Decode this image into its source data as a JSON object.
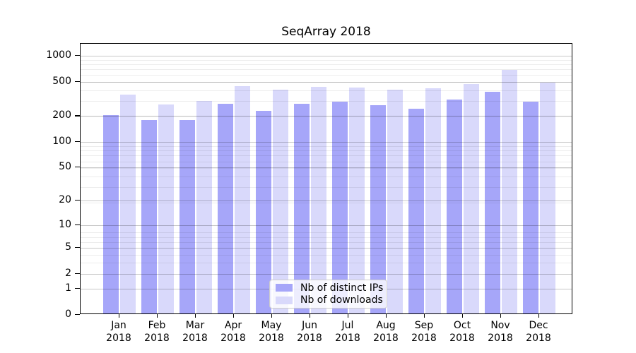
{
  "chart_data": {
    "type": "bar",
    "title": "SeqArray 2018",
    "categories": [
      "Jan",
      "Feb",
      "Mar",
      "Apr",
      "May",
      "Jun",
      "Jul",
      "Aug",
      "Sep",
      "Oct",
      "Nov",
      "Dec"
    ],
    "year_label": "2018",
    "series": [
      {
        "name": "Nb of distinct IPs",
        "color": "#a6a6f9",
        "values": [
          198,
          174,
          174,
          270,
          222,
          266,
          283,
          258,
          234,
          297,
          370,
          283
        ]
      },
      {
        "name": "Nb of downloads",
        "color": "#d9d9fb",
        "values": [
          345,
          265,
          290,
          430,
          388,
          418,
          413,
          393,
          402,
          458,
          660,
          472
        ]
      }
    ],
    "yscale": "log1p",
    "yticks": [
      0,
      1,
      2,
      5,
      10,
      20,
      50,
      100,
      200,
      500,
      1000
    ],
    "ylim": [
      0,
      1380
    ],
    "xlabel": "",
    "ylabel": "",
    "grid": true,
    "legend_position": "inside-bottom-center"
  },
  "colors": {
    "background": "#ffffff",
    "spine": "#000000",
    "grid_major": "#c7c7c7",
    "grid_minor": "#ededed",
    "legend_border": "#cccccc"
  }
}
